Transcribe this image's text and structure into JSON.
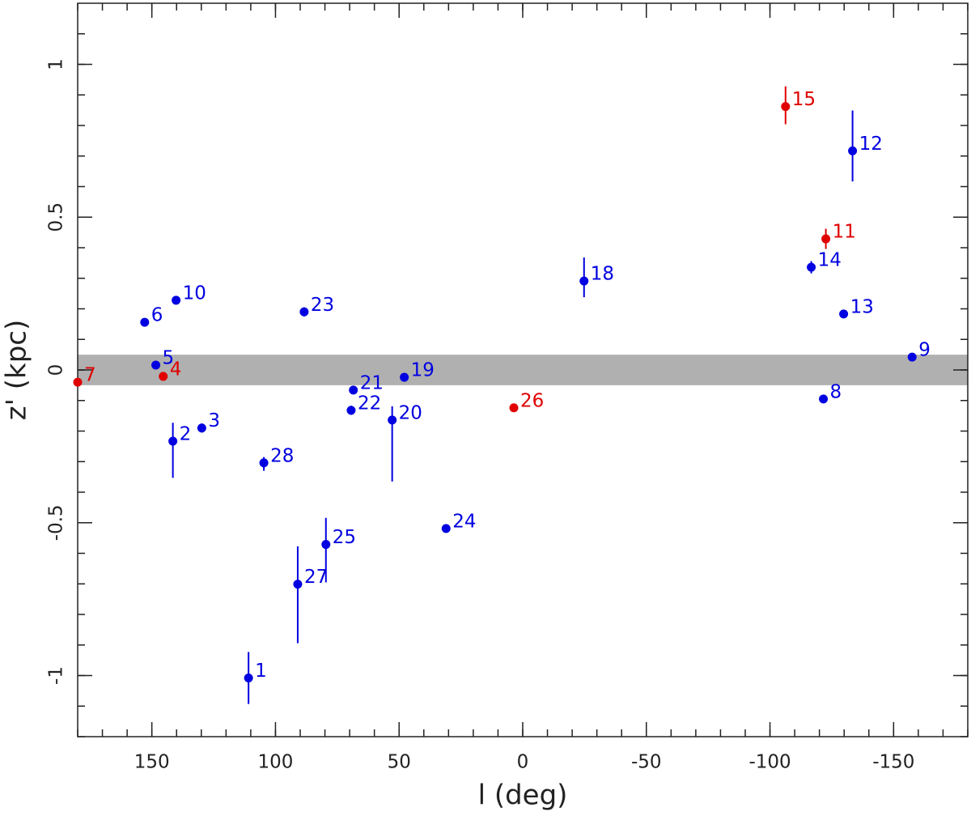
{
  "chart_data": {
    "type": "scatter",
    "x_label": "l (deg)",
    "y_label": "z' (kpc)",
    "xlim": [
      180,
      -180
    ],
    "ylim": [
      -1.2,
      1.2
    ],
    "xticks": [
      150,
      100,
      50,
      0,
      -50,
      -100,
      -150
    ],
    "yticks": [
      -1,
      -0.5,
      0,
      0.5,
      1
    ],
    "shaded_band": {
      "ylim": [
        -0.05,
        0.05
      ],
      "color": "#b0b0b0"
    },
    "series": [
      {
        "color": "#0000e0",
        "labels": [
          "1",
          "2",
          "3",
          "5",
          "6",
          "8",
          "9",
          "10",
          "12",
          "13",
          "14",
          "18",
          "19",
          "20",
          "21",
          "22",
          "23",
          "24",
          "25",
          "27",
          "28"
        ],
        "x": [
          110.9,
          141.5,
          129.8,
          148.4,
          152.9,
          -121.6,
          -157.5,
          140.2,
          -133.4,
          -129.8,
          -116.7,
          -24.8,
          47.9,
          52.8,
          68.5,
          69.4,
          88.4,
          31.0,
          79.6,
          91.0,
          104.7
        ],
        "values": [
          -1.008,
          -0.233,
          -0.19,
          0.016,
          0.156,
          -0.095,
          0.042,
          0.228,
          0.717,
          0.183,
          0.336,
          0.291,
          -0.024,
          -0.164,
          -0.066,
          -0.132,
          0.19,
          -0.519,
          -0.571,
          -0.701,
          -0.304
        ],
        "yerr_minus": [
          0.085,
          0.12,
          0.015,
          0,
          0,
          0,
          0,
          0,
          0.1,
          0,
          0.02,
          0.053,
          0,
          0.201,
          0,
          0.015,
          0.015,
          0,
          0.124,
          0.193,
          0.026
        ],
        "yerr_plus": [
          0.085,
          0.06,
          0.015,
          0,
          0,
          0,
          0,
          0,
          0.132,
          0,
          0.02,
          0.077,
          0,
          0.045,
          0,
          0.015,
          0.015,
          0,
          0.087,
          0.124,
          0.019
        ]
      },
      {
        "color": "#e00000",
        "labels": [
          "4",
          "7",
          "11",
          "15",
          "26"
        ],
        "x": [
          145.4,
          180,
          -122.6,
          -106.3,
          3.6
        ],
        "values": [
          -0.021,
          -0.04,
          0.429,
          0.862,
          -0.124
        ],
        "yerr_minus": [
          0,
          0,
          0.033,
          0.058,
          0
        ],
        "yerr_plus": [
          0,
          0,
          0.033,
          0.066,
          0
        ]
      }
    ]
  }
}
